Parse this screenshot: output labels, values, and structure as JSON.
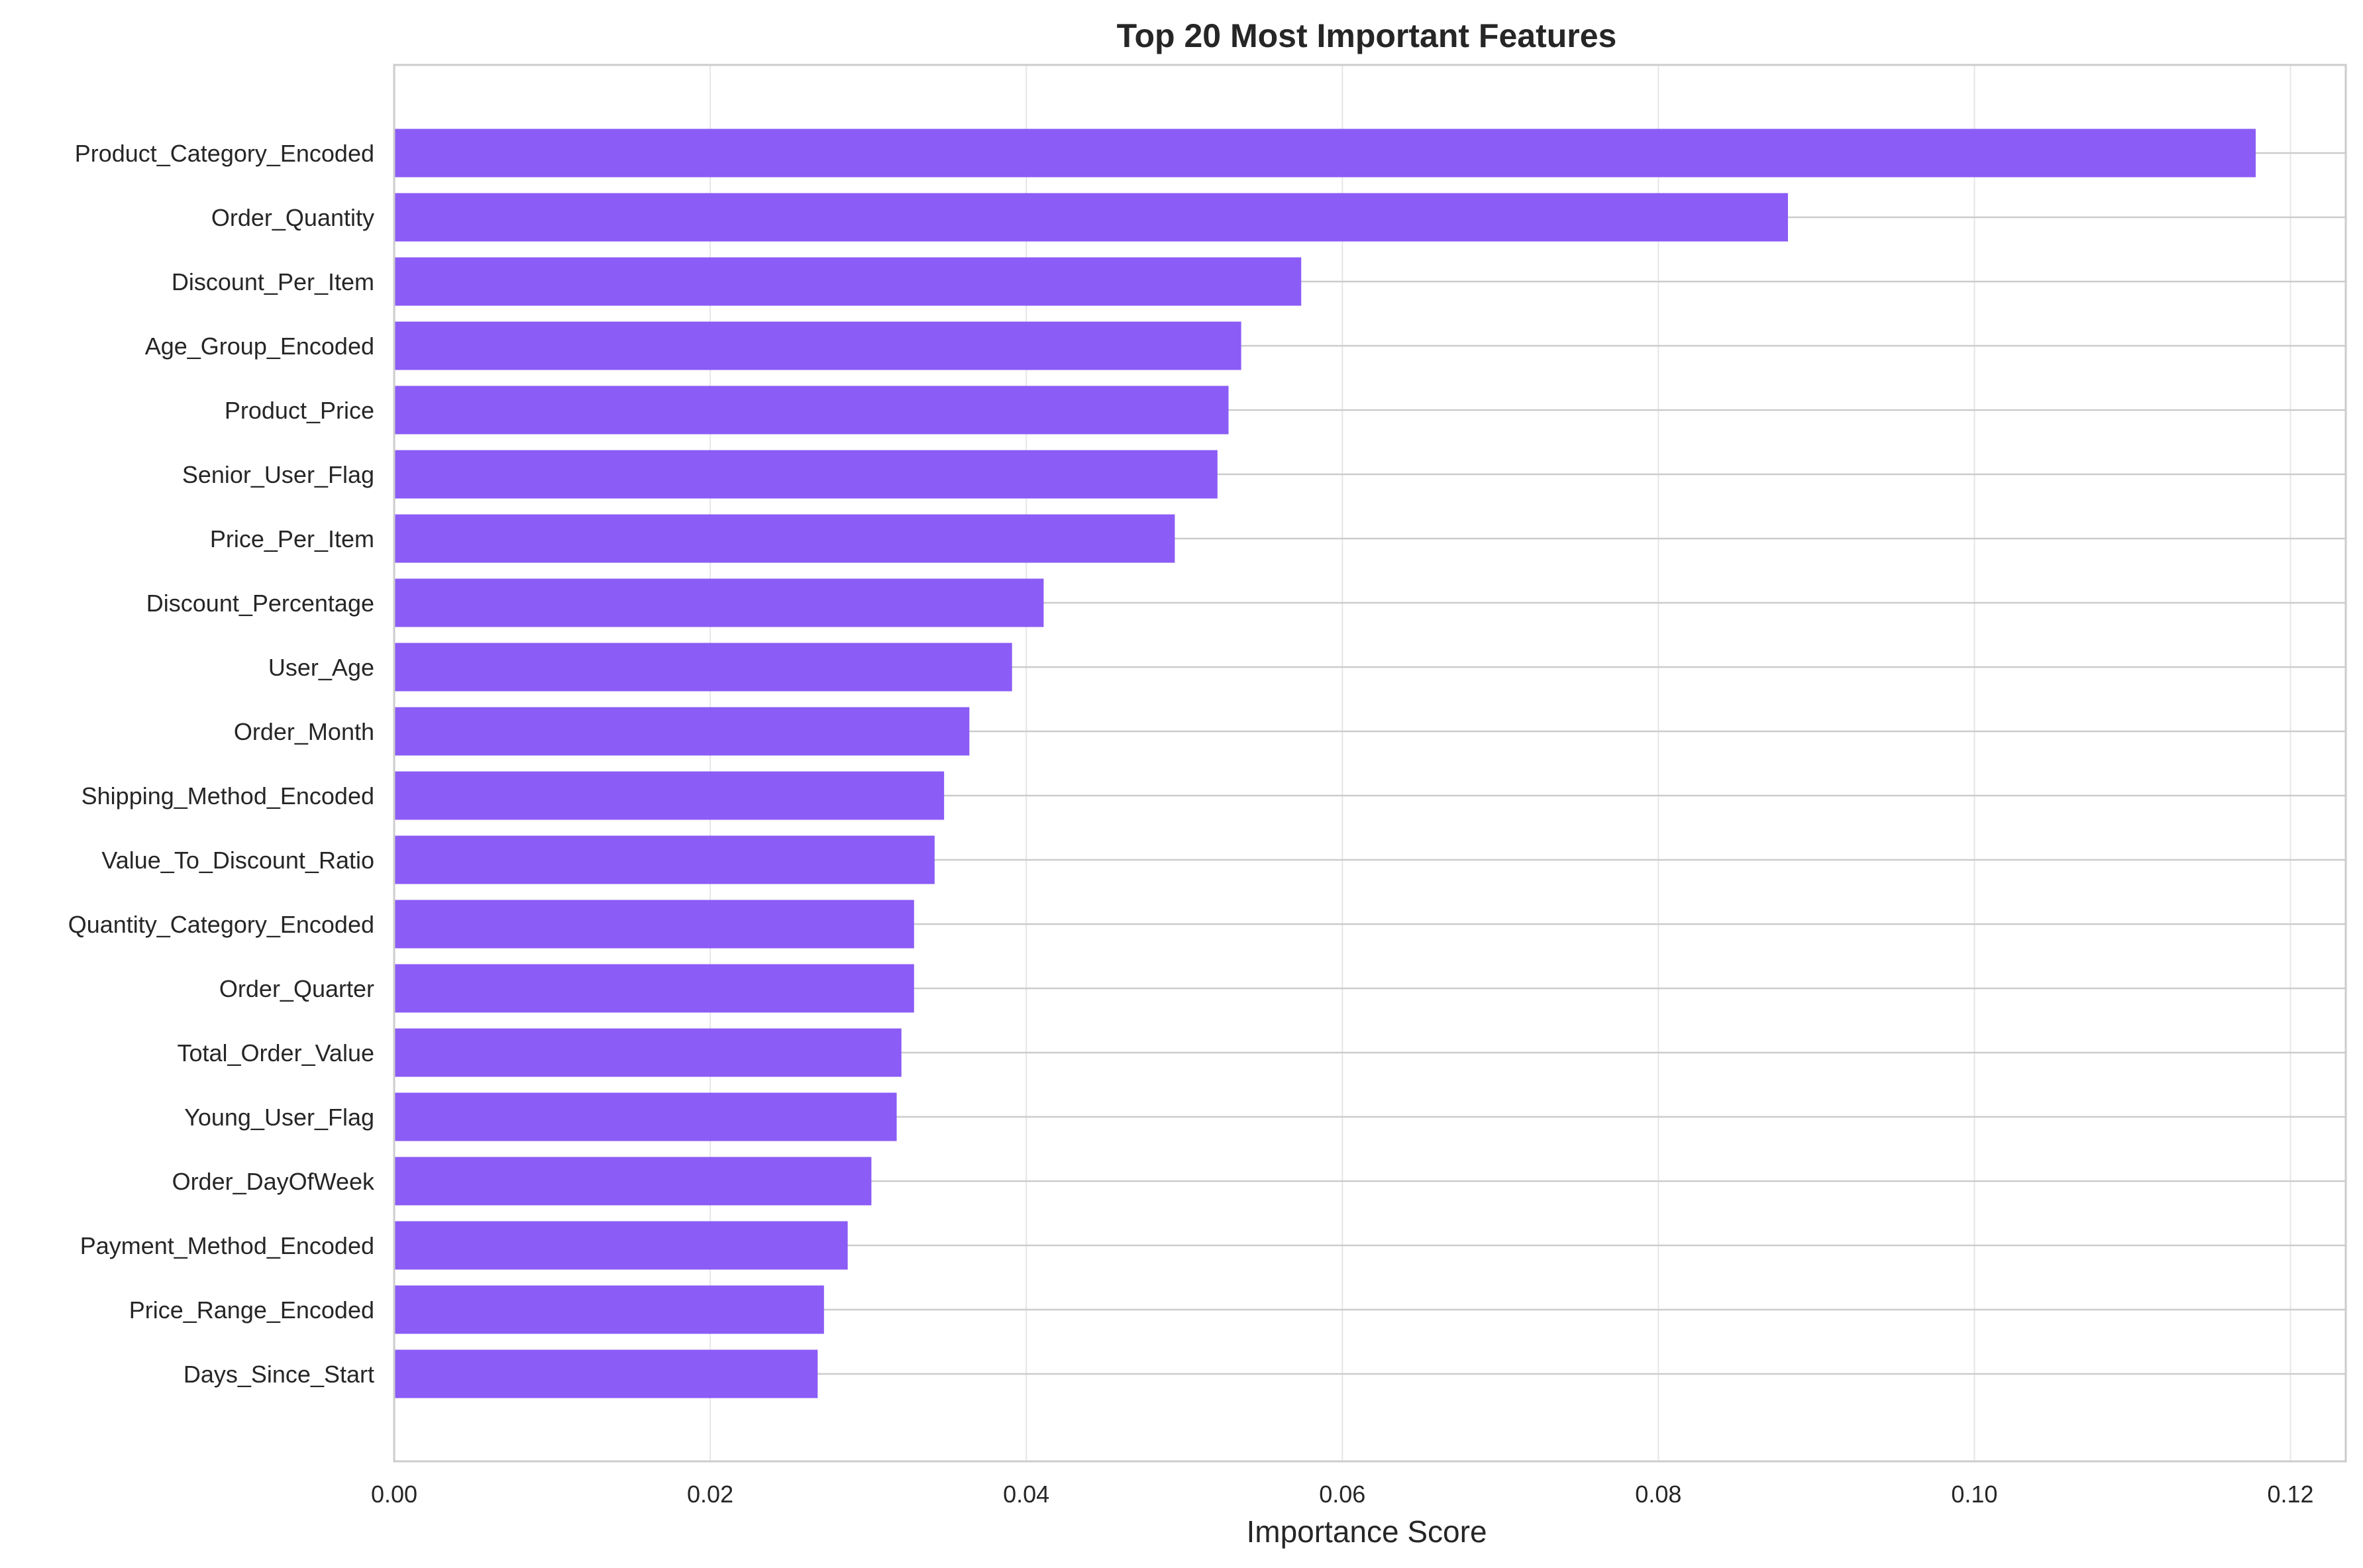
{
  "colors": {
    "bar": "#8b5cf6",
    "grid": "#e6e6e6",
    "hgrid": "#cccccc",
    "spine": "#cccccc",
    "text": "#262626",
    "background": "#ffffff"
  },
  "chart_data": {
    "type": "bar",
    "orientation": "horizontal",
    "title": "Top 20 Most Important Features",
    "xlabel": "Importance Score",
    "ylabel": "",
    "xlim": [
      0,
      0.1235
    ],
    "xticks": [
      0.0,
      0.02,
      0.04,
      0.06,
      0.08,
      0.1,
      0.12
    ],
    "xtick_labels": [
      "0.00",
      "0.02",
      "0.04",
      "0.06",
      "0.08",
      "0.10",
      "0.12"
    ],
    "grid": true,
    "legend": "none",
    "categories": [
      "Product_Category_Encoded",
      "Order_Quantity",
      "Discount_Per_Item",
      "Age_Group_Encoded",
      "Product_Price",
      "Senior_User_Flag",
      "Price_Per_Item",
      "Discount_Percentage",
      "User_Age",
      "Order_Month",
      "Shipping_Method_Encoded",
      "Value_To_Discount_Ratio",
      "Quantity_Category_Encoded",
      "Order_Quarter",
      "Total_Order_Value",
      "Young_User_Flag",
      "Order_DayOfWeek",
      "Payment_Method_Encoded",
      "Price_Range_Encoded",
      "Days_Since_Start"
    ],
    "values": [
      0.1178,
      0.0882,
      0.0574,
      0.0536,
      0.0528,
      0.0521,
      0.0494,
      0.0411,
      0.0391,
      0.0364,
      0.0348,
      0.0342,
      0.0329,
      0.0329,
      0.0321,
      0.0318,
      0.0302,
      0.0287,
      0.0272,
      0.0268
    ]
  }
}
